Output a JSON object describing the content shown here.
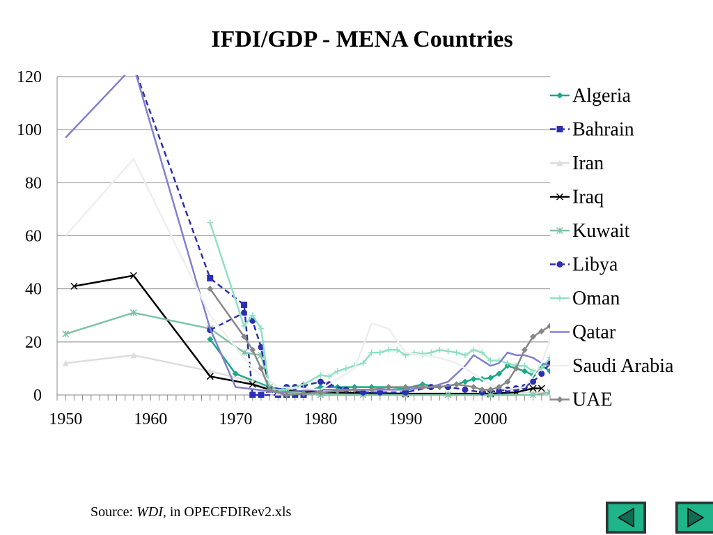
{
  "chart_data": {
    "type": "line",
    "title": "IFDI/GDP - MENA Countries",
    "xlabel": "",
    "ylabel": "",
    "xlim": [
      1949,
      2007
    ],
    "ylim": [
      0,
      120
    ],
    "xticks": [
      1950,
      1960,
      1970,
      1980,
      1990,
      2000
    ],
    "yticks": [
      0,
      20,
      40,
      60,
      80,
      100,
      120
    ],
    "grid": "horizontal",
    "legend_position": "right",
    "series": [
      {
        "name": "Algeria",
        "color": "#1aa98a",
        "marker": "diamond",
        "dash": "",
        "points": [
          [
            1967,
            21
          ],
          [
            1970,
            8
          ],
          [
            1974,
            3
          ],
          [
            1976,
            2
          ],
          [
            1978,
            1
          ],
          [
            1980,
            3
          ],
          [
            1982,
            3
          ],
          [
            1984,
            3
          ],
          [
            1986,
            3
          ],
          [
            1988,
            3
          ],
          [
            1990,
            2.5
          ],
          [
            1992,
            4
          ],
          [
            1994,
            3
          ],
          [
            1996,
            4
          ],
          [
            1997,
            5
          ],
          [
            1998,
            6
          ],
          [
            1999,
            6
          ],
          [
            2000,
            6.5
          ],
          [
            2001,
            8
          ],
          [
            2002,
            11
          ],
          [
            2003,
            10
          ],
          [
            2004,
            9
          ],
          [
            2005,
            7.5
          ],
          [
            2006,
            11
          ],
          [
            2007,
            9
          ]
        ]
      },
      {
        "name": "Bahrain",
        "color": "#2b2fb0",
        "marker": "square",
        "dash": "8,5",
        "points": [
          [
            1958,
            124
          ],
          [
            1967,
            44
          ],
          [
            1971,
            34
          ],
          [
            1972,
            0
          ],
          [
            1973,
            0
          ],
          [
            1975,
            0
          ],
          [
            1976,
            0
          ],
          [
            1977,
            0
          ],
          [
            1978,
            0
          ]
        ]
      },
      {
        "name": "Iran",
        "color": "#dddddd",
        "marker": "triangle",
        "dash": "",
        "points": [
          [
            1950,
            12
          ],
          [
            1958,
            15
          ],
          [
            1967,
            9
          ],
          [
            1972,
            5
          ],
          [
            1975,
            1
          ],
          [
            1980,
            0.5
          ],
          [
            1985,
            0.5
          ],
          [
            1990,
            0.5
          ],
          [
            1995,
            0.5
          ],
          [
            2000,
            0.5
          ],
          [
            2005,
            1
          ],
          [
            2007,
            1
          ]
        ]
      },
      {
        "name": "Iraq",
        "color": "#000000",
        "marker": "x",
        "dash": "",
        "points": [
          [
            1951,
            41
          ],
          [
            1958,
            45
          ],
          [
            1967,
            7
          ],
          [
            1972,
            4
          ],
          [
            1974,
            2
          ],
          [
            1980,
            1
          ],
          [
            1990,
            0.5
          ],
          [
            2000,
            0.5
          ],
          [
            2003,
            1
          ],
          [
            2005,
            2.5
          ],
          [
            2006,
            2.5
          ]
        ]
      },
      {
        "name": "Kuwait",
        "color": "#7fc4a5",
        "marker": "star",
        "dash": "",
        "points": [
          [
            1950,
            23
          ],
          [
            1958,
            31
          ],
          [
            1967,
            25
          ],
          [
            1971,
            16
          ],
          [
            1973,
            15
          ],
          [
            1974,
            3
          ],
          [
            1976,
            1
          ],
          [
            1980,
            0
          ],
          [
            1985,
            0
          ],
          [
            1990,
            0
          ],
          [
            1995,
            0
          ],
          [
            2000,
            0
          ],
          [
            2005,
            0
          ],
          [
            2007,
            1
          ]
        ]
      },
      {
        "name": "Libya",
        "color": "#2b2fb0",
        "marker": "circle",
        "dash": "8,5",
        "points": [
          [
            1967,
            24.5
          ],
          [
            1971,
            31
          ],
          [
            1972,
            28
          ],
          [
            1973,
            18
          ],
          [
            1974,
            2
          ],
          [
            1976,
            3
          ],
          [
            1977,
            3
          ],
          [
            1978,
            3.5
          ],
          [
            1980,
            5
          ],
          [
            1981,
            4
          ],
          [
            1983,
            2
          ],
          [
            1985,
            1
          ],
          [
            1987,
            1
          ],
          [
            1990,
            1
          ],
          [
            1993,
            3
          ],
          [
            1995,
            3
          ],
          [
            1997,
            2
          ],
          [
            1999,
            1
          ],
          [
            2001,
            1.5
          ],
          [
            2002,
            2
          ],
          [
            2003,
            2.5
          ],
          [
            2004,
            3
          ],
          [
            2005,
            5
          ],
          [
            2006,
            8
          ],
          [
            2007,
            12
          ]
        ]
      },
      {
        "name": "Oman",
        "color": "#8fe0c4",
        "marker": "plus",
        "dash": "",
        "points": [
          [
            1967,
            65
          ],
          [
            1971,
            26
          ],
          [
            1972,
            30
          ],
          [
            1973,
            25
          ],
          [
            1974,
            2
          ],
          [
            1976,
            2
          ],
          [
            1978,
            4
          ],
          [
            1980,
            7.5
          ],
          [
            1981,
            7
          ],
          [
            1982,
            9
          ],
          [
            1983,
            10
          ],
          [
            1984,
            11
          ],
          [
            1985,
            12
          ],
          [
            1986,
            16
          ],
          [
            1987,
            16
          ],
          [
            1988,
            17
          ],
          [
            1989,
            17
          ],
          [
            1990,
            15
          ],
          [
            1991,
            16
          ],
          [
            1992,
            15.5
          ],
          [
            1993,
            16
          ],
          [
            1994,
            17
          ],
          [
            1995,
            16.5
          ],
          [
            1996,
            16
          ],
          [
            1997,
            15
          ],
          [
            1998,
            17
          ],
          [
            1999,
            16
          ],
          [
            2000,
            13
          ],
          [
            2001,
            13
          ],
          [
            2002,
            12
          ],
          [
            2003,
            11
          ],
          [
            2004,
            11
          ],
          [
            2005,
            9
          ],
          [
            2006,
            10
          ],
          [
            2007,
            14
          ]
        ]
      },
      {
        "name": "Qatar",
        "color": "#8080d0",
        "marker": "none",
        "dash": "",
        "points": [
          [
            1950,
            97
          ],
          [
            1958,
            124
          ],
          [
            1967,
            25
          ],
          [
            1970,
            3
          ],
          [
            1975,
            1
          ],
          [
            1980,
            2
          ],
          [
            1985,
            2
          ],
          [
            1990,
            2
          ],
          [
            1993,
            3
          ],
          [
            1995,
            5
          ],
          [
            1996,
            8
          ],
          [
            1997,
            11
          ],
          [
            1998,
            15
          ],
          [
            1999,
            13
          ],
          [
            2000,
            11
          ],
          [
            2001,
            12
          ],
          [
            2002,
            16
          ],
          [
            2003,
            15
          ],
          [
            2004,
            15
          ],
          [
            2005,
            14
          ],
          [
            2006,
            12
          ],
          [
            2007,
            11
          ]
        ]
      },
      {
        "name": "Saudi Arabia",
        "color": "#eeeeee",
        "marker": "none",
        "dash": "",
        "points": [
          [
            1950,
            60
          ],
          [
            1958,
            89
          ],
          [
            1967,
            30
          ],
          [
            1972,
            10
          ],
          [
            1975,
            3
          ],
          [
            1980,
            2
          ],
          [
            1984,
            10
          ],
          [
            1986,
            27
          ],
          [
            1988,
            25
          ],
          [
            1990,
            16
          ],
          [
            1992,
            15
          ],
          [
            1994,
            14
          ],
          [
            1996,
            12
          ],
          [
            1998,
            8
          ],
          [
            2000,
            4
          ],
          [
            2002,
            2
          ],
          [
            2004,
            3
          ],
          [
            2006,
            12
          ],
          [
            2007,
            21
          ]
        ]
      },
      {
        "name": "UAE",
        "color": "#888888",
        "marker": "diamond",
        "dash": "",
        "points": [
          [
            1967,
            40
          ],
          [
            1971,
            22
          ],
          [
            1972,
            17
          ],
          [
            1973,
            10
          ],
          [
            1974,
            2
          ],
          [
            1976,
            0
          ],
          [
            1978,
            0.5
          ],
          [
            1980,
            1
          ],
          [
            1982,
            1.5
          ],
          [
            1984,
            2
          ],
          [
            1986,
            2
          ],
          [
            1988,
            3
          ],
          [
            1990,
            3
          ],
          [
            1992,
            3
          ],
          [
            1994,
            3
          ],
          [
            1996,
            4
          ],
          [
            1998,
            3
          ],
          [
            1999,
            2
          ],
          [
            2000,
            2
          ],
          [
            2001,
            3
          ],
          [
            2002,
            5
          ],
          [
            2003,
            10
          ],
          [
            2004,
            17
          ],
          [
            2005,
            22
          ],
          [
            2006,
            24
          ],
          [
            2007,
            26
          ]
        ]
      }
    ]
  },
  "source": {
    "prefix": "Source: ",
    "italic": "WDI,",
    "suffix": " in OPECFDIRev2.xls"
  },
  "nav": {
    "prev_icon": "triangle-left-icon",
    "next_icon": "triangle-right-icon"
  }
}
